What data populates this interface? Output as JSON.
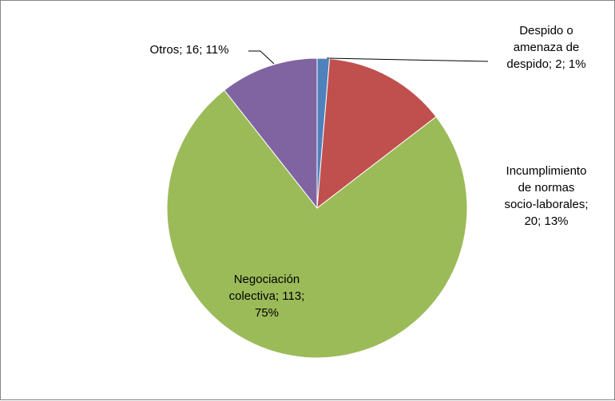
{
  "chart_data": {
    "type": "pie",
    "title": "",
    "slices": [
      {
        "label_lines": [
          "Despido o",
          "amenaza de",
          "despido; 2; 1%"
        ],
        "category": "Despido o amenaza de despido",
        "value": 2,
        "percent": 1,
        "color": "#4F81BD"
      },
      {
        "label_lines": [
          "Incumplimiento",
          "de normas",
          "socio-laborales;",
          "20; 13%"
        ],
        "category": "Incumplimiento de normas socio-laborales",
        "value": 20,
        "percent": 13,
        "color": "#C0504D"
      },
      {
        "label_lines": [
          "Negociación",
          "colectiva; 113;",
          "75%"
        ],
        "category": "Negociación colectiva",
        "value": 113,
        "percent": 75,
        "color": "#9BBB59"
      },
      {
        "label_lines": [
          "Otros; 16; 11%"
        ],
        "category": "Otros",
        "value": 16,
        "percent": 11,
        "color": "#8064A2"
      }
    ],
    "start_angle_deg": 0,
    "direction": "clockwise",
    "legend": "none",
    "data_labels": "category; value; percent"
  }
}
